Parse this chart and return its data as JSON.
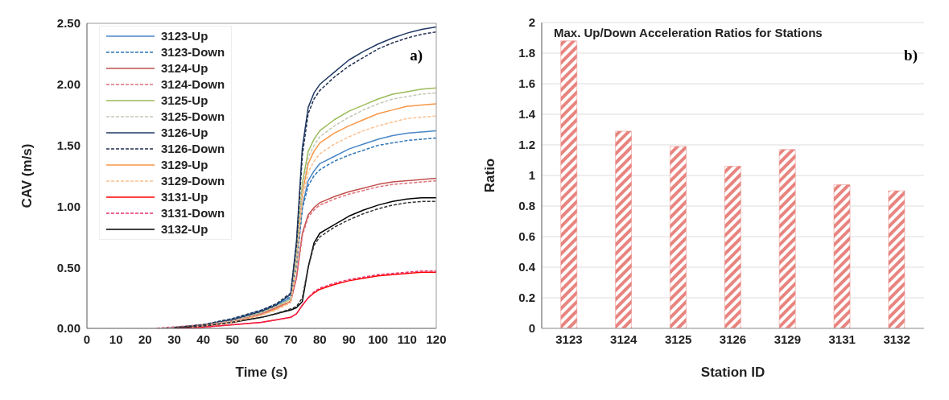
{
  "chart_data": [
    {
      "type": "line",
      "xlabel": "Time (s)",
      "ylabel": "CAV (m/s)",
      "annotations": [
        "a)"
      ],
      "legend": "top left",
      "grid": false,
      "x": [
        30,
        40,
        50,
        60,
        65,
        70,
        72,
        74,
        76,
        78,
        80,
        85,
        90,
        95,
        100,
        105,
        110,
        115,
        120
      ],
      "xlim": [
        0,
        120
      ],
      "xticks": [
        0,
        10,
        20,
        30,
        40,
        50,
        60,
        70,
        80,
        90,
        100,
        110,
        120
      ],
      "ylim": [
        0,
        2.5
      ],
      "yticks": [
        {
          "value": 0,
          "label": "0.00"
        },
        {
          "value": 0.5,
          "label": "0.50"
        },
        {
          "value": 1,
          "label": "1.00"
        },
        {
          "value": 1.5,
          "label": "1.50"
        },
        {
          "value": 2,
          "label": "2.00"
        },
        {
          "value": 2.5,
          "label": "2.50"
        }
      ],
      "series": [
        {
          "name": "3123-Up",
          "color": "#4a86c8",
          "line_style": "solid",
          "values": [
            0.005,
            0.03,
            0.07,
            0.14,
            0.19,
            0.25,
            0.52,
            1.0,
            1.21,
            1.29,
            1.35,
            1.41,
            1.47,
            1.51,
            1.55,
            1.58,
            1.6,
            1.61,
            1.62
          ]
        },
        {
          "name": "3123-Down",
          "color": "#2e75b6",
          "line_style": "dashed",
          "x": [
            27,
            40,
            50,
            60,
            65,
            70,
            72,
            74,
            76,
            78,
            80,
            85,
            90,
            95,
            100,
            105,
            110,
            115,
            120
          ],
          "values": [
            0.003,
            0.03,
            0.08,
            0.15,
            0.2,
            0.26,
            0.52,
            0.98,
            1.17,
            1.25,
            1.3,
            1.37,
            1.42,
            1.46,
            1.5,
            1.52,
            1.54,
            1.55,
            1.56
          ]
        },
        {
          "name": "3124-Up",
          "color": "#c0504d",
          "line_style": "solid",
          "values": [
            0.005,
            0.03,
            0.06,
            0.12,
            0.17,
            0.22,
            0.42,
            0.78,
            0.93,
            0.99,
            1.03,
            1.08,
            1.12,
            1.15,
            1.18,
            1.2,
            1.21,
            1.22,
            1.23
          ]
        },
        {
          "name": "3124-Down",
          "color": "#e0707a",
          "line_style": "dashed",
          "x": [
            24,
            40,
            50,
            60,
            65,
            70,
            72,
            74,
            76,
            78,
            80,
            85,
            90,
            95,
            100,
            105,
            110,
            115,
            120
          ],
          "values": [
            0.002,
            0.03,
            0.06,
            0.12,
            0.17,
            0.22,
            0.41,
            0.76,
            0.91,
            0.97,
            1.01,
            1.06,
            1.1,
            1.13,
            1.16,
            1.18,
            1.19,
            1.2,
            1.21
          ]
        },
        {
          "name": "3125-Up",
          "color": "#9bbb59",
          "line_style": "solid",
          "values": [
            0.005,
            0.03,
            0.06,
            0.13,
            0.18,
            0.24,
            0.59,
            1.19,
            1.45,
            1.55,
            1.62,
            1.71,
            1.78,
            1.83,
            1.88,
            1.92,
            1.94,
            1.96,
            1.97
          ]
        },
        {
          "name": "3125-Down",
          "color": "#c4c8b8",
          "line_style": "dashed",
          "values": [
            0.005,
            0.03,
            0.06,
            0.13,
            0.18,
            0.24,
            0.57,
            1.15,
            1.4,
            1.5,
            1.57,
            1.66,
            1.73,
            1.79,
            1.84,
            1.88,
            1.9,
            1.92,
            1.93
          ]
        },
        {
          "name": "3126-Up",
          "color": "#1f3864",
          "line_style": "solid",
          "values": [
            0.005,
            0.03,
            0.07,
            0.14,
            0.19,
            0.28,
            0.72,
            1.48,
            1.81,
            1.93,
            2.0,
            2.1,
            2.2,
            2.27,
            2.33,
            2.38,
            2.42,
            2.45,
            2.47
          ]
        },
        {
          "name": "3126-Down",
          "color": "#203050",
          "line_style": "dashed",
          "values": [
            0.005,
            0.03,
            0.08,
            0.15,
            0.2,
            0.29,
            0.68,
            1.42,
            1.76,
            1.88,
            1.95,
            2.06,
            2.15,
            2.22,
            2.29,
            2.34,
            2.38,
            2.41,
            2.43
          ]
        },
        {
          "name": "3129-Up",
          "color": "#f79646",
          "line_style": "solid",
          "values": [
            0.005,
            0.02,
            0.05,
            0.11,
            0.16,
            0.22,
            0.54,
            1.11,
            1.35,
            1.45,
            1.52,
            1.6,
            1.66,
            1.71,
            1.76,
            1.79,
            1.82,
            1.83,
            1.84
          ]
        },
        {
          "name": "3129-Down",
          "color": "#fac090",
          "line_style": "dashed",
          "x": [
            36,
            40,
            50,
            60,
            65,
            70,
            72,
            74,
            76,
            78,
            80,
            85,
            90,
            95,
            100,
            105,
            110,
            115,
            120
          ],
          "values": [
            0.01,
            0.02,
            0.05,
            0.11,
            0.15,
            0.21,
            0.52,
            1.05,
            1.28,
            1.37,
            1.43,
            1.51,
            1.57,
            1.62,
            1.66,
            1.69,
            1.72,
            1.73,
            1.74
          ]
        },
        {
          "name": "3131-Up",
          "color": "#ff0000",
          "line_style": "solid",
          "values": [
            0,
            0.01,
            0.03,
            0.05,
            0.07,
            0.09,
            0.12,
            0.19,
            0.25,
            0.29,
            0.32,
            0.36,
            0.39,
            0.41,
            0.43,
            0.44,
            0.45,
            0.46,
            0.46
          ]
        },
        {
          "name": "3131-Down",
          "color": "#e8306a",
          "line_style": "dashed",
          "values": [
            0,
            0.01,
            0.03,
            0.05,
            0.07,
            0.09,
            0.12,
            0.19,
            0.25,
            0.3,
            0.33,
            0.37,
            0.4,
            0.42,
            0.44,
            0.45,
            0.46,
            0.47,
            0.47
          ]
        },
        {
          "name": "3132-Up",
          "color": "#000000",
          "line_style": "solid",
          "values": [
            0.005,
            0.02,
            0.05,
            0.09,
            0.12,
            0.15,
            0.17,
            0.22,
            0.5,
            0.7,
            0.78,
            0.85,
            0.92,
            0.97,
            1.01,
            1.04,
            1.06,
            1.07,
            1.07
          ]
        },
        {
          "color": "#333333",
          "line_style": "dashed",
          "values": [
            0.005,
            0.02,
            0.05,
            0.09,
            0.12,
            0.16,
            0.18,
            0.25,
            0.5,
            0.68,
            0.75,
            0.83,
            0.89,
            0.94,
            0.98,
            1.01,
            1.03,
            1.04,
            1.04
          ]
        }
      ]
    },
    {
      "type": "bar",
      "title": "Max. Up/Down Acceleration Ratios for Stations",
      "xlabel": "Station ID",
      "ylabel": "Ratio",
      "annotations": [
        "b)"
      ],
      "grid": "y",
      "categories": [
        "3123",
        "3124",
        "3125",
        "3126",
        "3129",
        "3131",
        "3132"
      ],
      "values": [
        1.88,
        1.29,
        1.19,
        1.06,
        1.17,
        0.94,
        0.9
      ],
      "color": "#e8847f",
      "ylim": [
        0,
        2
      ],
      "yticks": [
        0,
        0.2,
        0.4,
        0.6,
        0.8,
        1,
        1.2,
        1.4,
        1.6,
        1.8,
        2
      ]
    }
  ]
}
